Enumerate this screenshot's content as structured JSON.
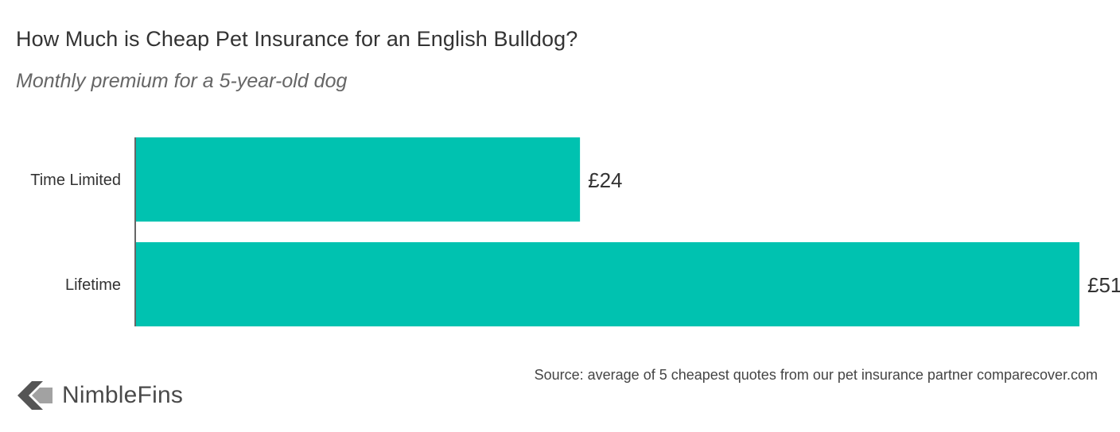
{
  "chart_data": {
    "type": "bar",
    "orientation": "horizontal",
    "title": "How Much is Cheap Pet Insurance for an English Bulldog?",
    "subtitle": "Monthly premium for a 5-year-old dog",
    "categories": [
      "Time Limited",
      "Lifetime"
    ],
    "values": [
      24,
      51
    ],
    "value_labels": [
      "£24",
      "£51"
    ],
    "xlim": [
      0,
      51
    ],
    "grid": false,
    "bar_color": "#00c2b0"
  },
  "source": "Source: average of 5 cheapest quotes from our pet insurance partner comparecover.com",
  "brand": {
    "name": "NimbleFins",
    "icon": "nimblefins-chevron-icon",
    "color": "#555555"
  }
}
